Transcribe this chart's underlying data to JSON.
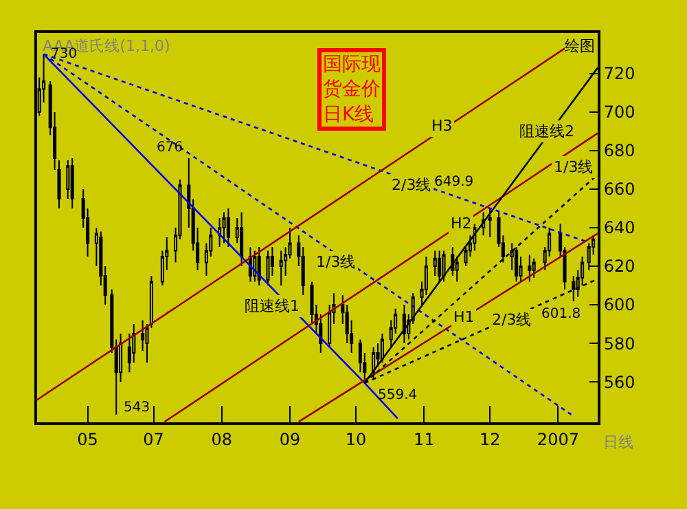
{
  "chart_data": {
    "type": "candlestick",
    "title": "国际现货金价日K线",
    "x": [
      "2006-05-10",
      "2006-05-12",
      "2006-05-15",
      "2006-05-17",
      "2006-05-19",
      "2006-05-23",
      "2006-05-25",
      "2006-05-30",
      "2006-06-01",
      "2006-06-05",
      "2006-06-07",
      "2006-06-09",
      "2006-06-12",
      "2006-06-14",
      "2006-06-16",
      "2006-06-20",
      "2006-06-22",
      "2006-06-26",
      "2006-06-28",
      "2006-06-30",
      "2006-07-05",
      "2006-07-07",
      "2006-07-11",
      "2006-07-13",
      "2006-07-17",
      "2006-07-19",
      "2006-07-21",
      "2006-07-25",
      "2006-07-27",
      "2006-07-31",
      "2006-08-02",
      "2006-08-04",
      "2006-08-08",
      "2006-08-10",
      "2006-08-14",
      "2006-08-16",
      "2006-08-18",
      "2006-08-22",
      "2006-08-24",
      "2006-08-28",
      "2006-08-30",
      "2006-09-01",
      "2006-09-05",
      "2006-09-07",
      "2006-09-11",
      "2006-09-13",
      "2006-09-15",
      "2006-09-19",
      "2006-09-21",
      "2006-09-25",
      "2006-09-27",
      "2006-09-29",
      "2006-10-03",
      "2006-10-05",
      "2006-10-09",
      "2006-10-11",
      "2006-10-13",
      "2006-10-17",
      "2006-10-19",
      "2006-10-23",
      "2006-10-25",
      "2006-10-27",
      "2006-10-31",
      "2006-11-02",
      "2006-11-06",
      "2006-11-08",
      "2006-11-10",
      "2006-11-14",
      "2006-11-16",
      "2006-11-20",
      "2006-11-22",
      "2006-11-24",
      "2006-11-28",
      "2006-12-01",
      "2006-12-05",
      "2006-12-07",
      "2006-12-11",
      "2006-12-13",
      "2006-12-15",
      "2006-12-19",
      "2006-12-21",
      "2006-12-26",
      "2006-12-28",
      "2007-01-02",
      "2007-01-04",
      "2007-01-08",
      "2007-01-10",
      "2007-01-12",
      "2007-01-15",
      "2007-01-17"
    ],
    "ohlc": [
      [
        700,
        718,
        698,
        712
      ],
      [
        712,
        730,
        705,
        716
      ],
      [
        714,
        716,
        688,
        692
      ],
      [
        692,
        700,
        670,
        676
      ],
      [
        670,
        675,
        650,
        655
      ],
      [
        660,
        675,
        655,
        672
      ],
      [
        672,
        676,
        650,
        655
      ],
      [
        655,
        660,
        640,
        645
      ],
      [
        645,
        650,
        625,
        632
      ],
      [
        632,
        640,
        620,
        637
      ],
      [
        635,
        638,
        610,
        615
      ],
      [
        615,
        620,
        600,
        605
      ],
      [
        605,
        608,
        575,
        578
      ],
      [
        578,
        582,
        543,
        565
      ],
      [
        565,
        585,
        560,
        580
      ],
      [
        578,
        585,
        565,
        570
      ],
      [
        575,
        590,
        570,
        585
      ],
      [
        585,
        592,
        576,
        582
      ],
      [
        580,
        590,
        570,
        588
      ],
      [
        590,
        615,
        588,
        612
      ],
      [
        612,
        628,
        610,
        625
      ],
      [
        625,
        635,
        618,
        628
      ],
      [
        628,
        640,
        622,
        636
      ],
      [
        636,
        665,
        634,
        662
      ],
      [
        662,
        676,
        640,
        650
      ],
      [
        650,
        655,
        628,
        632
      ],
      [
        632,
        640,
        618,
        622
      ],
      [
        622,
        632,
        615,
        628
      ],
      [
        628,
        640,
        625,
        636
      ],
      [
        636,
        645,
        630,
        640
      ],
      [
        640,
        648,
        632,
        645
      ],
      [
        645,
        650,
        630,
        635
      ],
      [
        635,
        645,
        632,
        640
      ],
      [
        640,
        648,
        620,
        625
      ],
      [
        625,
        630,
        612,
        615
      ],
      [
        615,
        628,
        612,
        625
      ],
      [
        625,
        630,
        610,
        613
      ],
      [
        613,
        628,
        610,
        625
      ],
      [
        625,
        630,
        615,
        620
      ],
      [
        620,
        628,
        610,
        623
      ],
      [
        623,
        630,
        615,
        626
      ],
      [
        626,
        640,
        624,
        632
      ],
      [
        632,
        636,
        620,
        625
      ],
      [
        625,
        630,
        605,
        610
      ],
      [
        610,
        612,
        590,
        595
      ],
      [
        595,
        600,
        585,
        590
      ],
      [
        590,
        595,
        575,
        580
      ],
      [
        580,
        600,
        578,
        596
      ],
      [
        596,
        606,
        590,
        600
      ],
      [
        600,
        605,
        590,
        596
      ],
      [
        596,
        600,
        580,
        585
      ],
      [
        585,
        592,
        575,
        580
      ],
      [
        580,
        582,
        565,
        570
      ],
      [
        570,
        575,
        559.4,
        565
      ],
      [
        565,
        578,
        562,
        575
      ],
      [
        575,
        580,
        568,
        572
      ],
      [
        572,
        585,
        570,
        582
      ],
      [
        582,
        592,
        578,
        588
      ],
      [
        588,
        598,
        585,
        595
      ],
      [
        595,
        600,
        580,
        585
      ],
      [
        585,
        595,
        582,
        592
      ],
      [
        592,
        606,
        590,
        604
      ],
      [
        604,
        612,
        600,
        608
      ],
      [
        608,
        625,
        605,
        620
      ],
      [
        620,
        628,
        615,
        624
      ],
      [
        624,
        628,
        612,
        615
      ],
      [
        615,
        628,
        612,
        626
      ],
      [
        626,
        630,
        615,
        618
      ],
      [
        618,
        625,
        612,
        622
      ],
      [
        622,
        630,
        620,
        628
      ],
      [
        628,
        636,
        625,
        632
      ],
      [
        632,
        642,
        628,
        640
      ],
      [
        640,
        648,
        636,
        644
      ],
      [
        644,
        649.9,
        635,
        645
      ],
      [
        645,
        648,
        630,
        632
      ],
      [
        632,
        636,
        622,
        625
      ],
      [
        625,
        632,
        618,
        628
      ],
      [
        628,
        630,
        612,
        615
      ],
      [
        615,
        625,
        612,
        620
      ],
      [
        620,
        626,
        612,
        618
      ],
      [
        618,
        624,
        614,
        622
      ],
      [
        622,
        630,
        618,
        628
      ],
      [
        628,
        640,
        625,
        637
      ],
      [
        637,
        642,
        625,
        628
      ],
      [
        628,
        630,
        608,
        612
      ],
      [
        612,
        615,
        601.8,
        608
      ],
      [
        608,
        618,
        604,
        614
      ],
      [
        614,
        625,
        610,
        622
      ],
      [
        622,
        632,
        618,
        630
      ],
      [
        630,
        636,
        626,
        634
      ]
    ],
    "color": "#000000",
    "series": [
      {
        "type": "line",
        "x": [
          "2006-05-12",
          "2006-10-05",
          "2006-10-20"
        ],
        "values": [
          730,
          559.4,
          541
        ],
        "color": "#0000ff",
        "line_style": "solid"
      },
      {
        "type": "line",
        "x": [
          "2006-05-12",
          "2007-01-07"
        ],
        "values": [
          730,
          543
        ],
        "color": "#0000ff",
        "line_style": "dotted"
      },
      {
        "type": "line",
        "x": [
          "2006-05-12",
          "2007-01-14"
        ],
        "values": [
          730,
          632.7
        ],
        "color": "#0000ff",
        "line_style": "dotted"
      },
      {
        "type": "line",
        "x": [
          "2006-05-09",
          "2007-01-04"
        ],
        "values": [
          550.7,
          733
        ],
        "color": "#990000",
        "line_style": "solid"
      },
      {
        "type": "line",
        "x": [
          "2006-07-06",
          "2007-01-19"
        ],
        "values": [
          539.3,
          689
        ],
        "color": "#990000",
        "line_style": "solid"
      },
      {
        "type": "line",
        "x": [
          "2006-09-05",
          "2007-01-19"
        ],
        "values": [
          539.3,
          637
        ],
        "color": "#990000",
        "line_style": "solid"
      },
      {
        "type": "line",
        "x": [
          "2006-10-05",
          "2007-01-19"
        ],
        "values": [
          559.4,
          723
        ],
        "color": "#000000",
        "line_style": "solid"
      },
      {
        "type": "line",
        "x": [
          "2006-10-05",
          "2007-01-19"
        ],
        "values": [
          559.4,
          667.6
        ],
        "color": "#000000",
        "line_style": "dotted"
      },
      {
        "type": "line",
        "x": [
          "2006-10-05",
          "2007-01-19"
        ],
        "values": [
          559.4,
          613.4
        ],
        "color": "#000000",
        "line_style": "dotted"
      }
    ],
    "annotations": [
      "AAA道氏线(1,1,0)",
      "绘图",
      "日线",
      "阻速线1",
      "1/3线",
      "2/3线",
      "H3",
      "H2",
      "H1",
      "2/3线",
      "阻速线2",
      "1/3线",
      {
        "text": "730",
        "x": "2006-05-12",
        "y": 730
      },
      {
        "text": "676",
        "x": "2006-07-17",
        "y": 676
      },
      {
        "text": "543",
        "x": "2006-06-14",
        "y": 543
      },
      {
        "text": "559.4",
        "x": "2006-10-05",
        "y": 559.4
      },
      {
        "text": "649.9",
        "x": "2006-12-01",
        "y": 649.9
      },
      {
        "text": "601.8",
        "x": "2007-01-08",
        "y": 601.8
      }
    ],
    "xlim": [
      "2006-05-09",
      "2007-01-19"
    ],
    "xticks": [
      {
        "value": "2006-06-01",
        "label": "05"
      },
      {
        "value": "2006-07-01",
        "label": "07"
      },
      {
        "value": "2006-08-01",
        "label": "08"
      },
      {
        "value": "2006-09-01",
        "label": "09"
      },
      {
        "value": "2006-10-01",
        "label": "10"
      },
      {
        "value": "2006-11-01",
        "label": "11"
      },
      {
        "value": "2006-12-01",
        "label": "12"
      },
      {
        "value": "2007-01-01",
        "label": "2007"
      }
    ],
    "ylim": [
      539,
      741
    ],
    "yticks": [
      560,
      580,
      600,
      620,
      640,
      660,
      680,
      700,
      720
    ],
    "grid": false
  }
}
